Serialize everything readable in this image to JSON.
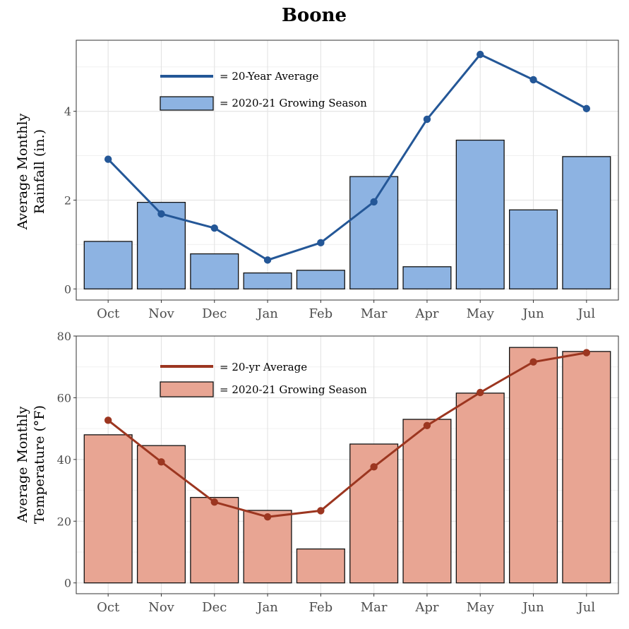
{
  "figure_title": "Boone",
  "chart_data": [
    {
      "type": "bar",
      "title": "",
      "xlabel": "",
      "ylabel_lines": [
        "Average Monthly",
        "Rainfall (in.)"
      ],
      "categories": [
        "Oct",
        "Nov",
        "Dec",
        "Jan",
        "Feb",
        "Mar",
        "Apr",
        "May",
        "Jun",
        "Jul"
      ],
      "ylim": [
        -0.25,
        5.6
      ],
      "yticks": [
        0,
        2,
        4
      ],
      "series": [
        {
          "name": "= 2020-21 Growing Season",
          "kind": "bar",
          "color": "#8db3e2",
          "values": [
            1.07,
            1.95,
            0.79,
            0.36,
            0.42,
            2.53,
            0.5,
            3.35,
            1.78,
            2.98
          ]
        },
        {
          "name": "= 20-Year Average",
          "kind": "line",
          "color": "#245797",
          "values": [
            2.92,
            1.69,
            1.37,
            0.65,
            1.04,
            1.96,
            3.82,
            5.28,
            4.71,
            4.06
          ]
        }
      ],
      "legend_position": "top-left"
    },
    {
      "type": "bar",
      "title": "",
      "xlabel": "",
      "ylabel_lines": [
        "Average Monthly",
        "Temperature (°F)"
      ],
      "categories": [
        "Oct",
        "Nov",
        "Dec",
        "Jan",
        "Feb",
        "Mar",
        "Apr",
        "May",
        "Jun",
        "Jul"
      ],
      "ylim": [
        -3.5,
        80
      ],
      "yticks": [
        0,
        20,
        40,
        60,
        80
      ],
      "series": [
        {
          "name": "= 2020-21 Growing Season",
          "kind": "bar",
          "color": "#e8a593",
          "values": [
            48.0,
            44.5,
            27.7,
            23.5,
            11.0,
            45.0,
            53.0,
            61.5,
            76.3,
            75.0
          ]
        },
        {
          "name": "= 20-yr Average",
          "kind": "line",
          "color": "#9c3620",
          "values": [
            52.7,
            39.2,
            26.2,
            21.4,
            23.4,
            37.6,
            51.0,
            61.7,
            71.6,
            74.6
          ]
        }
      ],
      "legend_position": "top-left"
    }
  ]
}
